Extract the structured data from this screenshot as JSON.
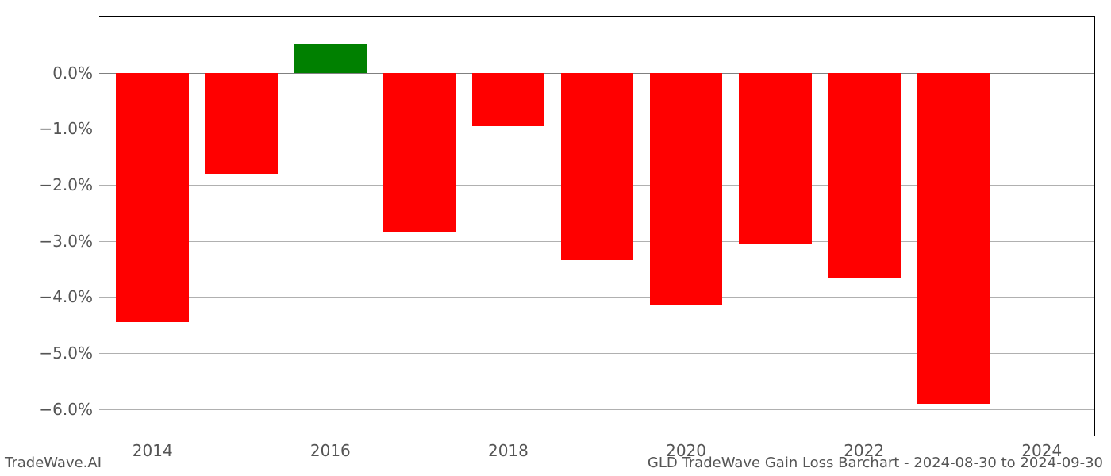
{
  "chart": {
    "type": "bar",
    "background_color": "#ffffff",
    "grid_color": "#b0b0b0",
    "axis_color": "#000000",
    "zero_line_color": "#808080",
    "tick_label_color": "#555555",
    "tick_fontsize": 20,
    "years": [
      2014,
      2015,
      2016,
      2017,
      2018,
      2019,
      2020,
      2021,
      2022,
      2023,
      2024
    ],
    "values": [
      -4.45,
      -1.8,
      0.5,
      -2.85,
      -0.95,
      -3.35,
      -4.15,
      -3.05,
      -3.65,
      -5.9,
      0.0
    ],
    "bar_colors": [
      "#ff0000",
      "#ff0000",
      "#008000",
      "#ff0000",
      "#ff0000",
      "#ff0000",
      "#ff0000",
      "#ff0000",
      "#ff0000",
      "#ff0000",
      "#ff0000"
    ],
    "ymin": -6.5,
    "ymax": 1.0,
    "yticks": [
      -6.0,
      -5.0,
      -4.0,
      -3.0,
      -2.0,
      -1.0,
      0.0
    ],
    "ytick_labels": [
      "−6.0%",
      "−5.0%",
      "−4.0%",
      "−3.0%",
      "−2.0%",
      "−1.0%",
      "0.0%"
    ],
    "xticks": [
      2014,
      2016,
      2018,
      2020,
      2022,
      2024
    ],
    "xtick_labels": [
      "2014",
      "2016",
      "2018",
      "2020",
      "2022",
      "2024"
    ],
    "xmin": 2013.4,
    "xmax": 2024.6,
    "bar_width": 0.82
  },
  "footer": {
    "left": "TradeWave.AI",
    "right": "GLD TradeWave Gain Loss Barchart - 2024-08-30 to 2024-09-30",
    "fontsize": 18,
    "color": "#555555"
  }
}
